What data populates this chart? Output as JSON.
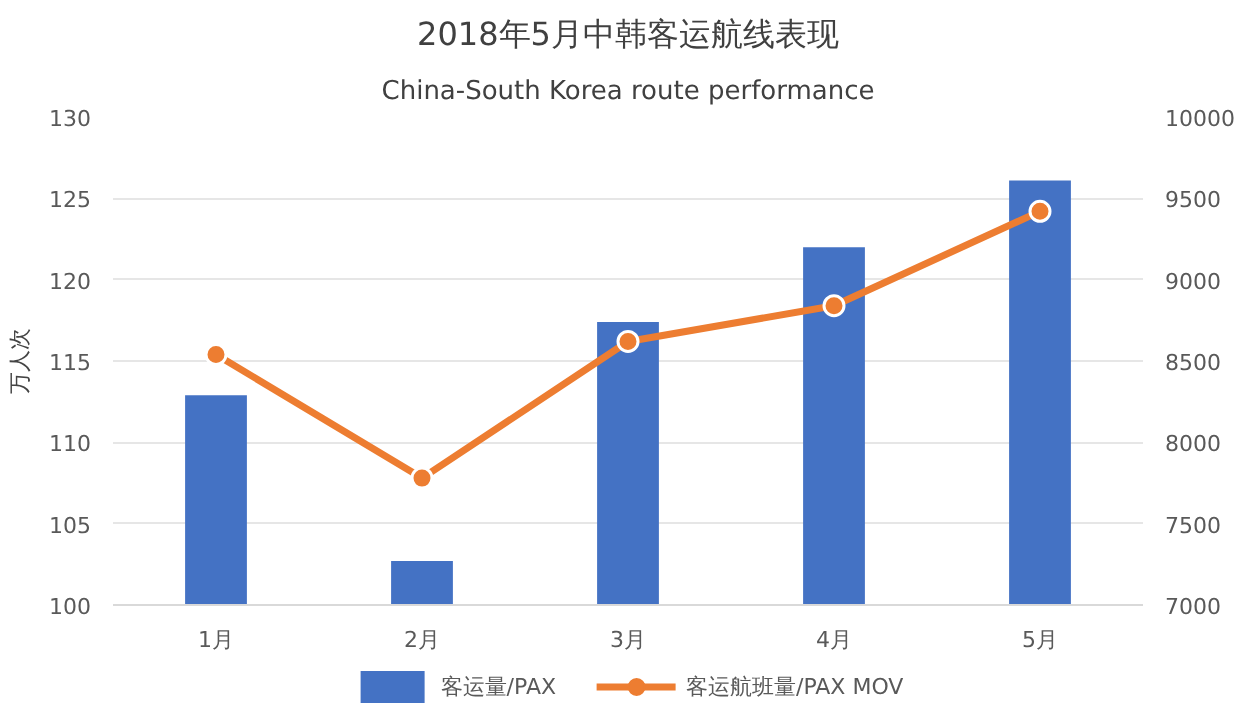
{
  "chart_data": {
    "type": "bar",
    "title": "2018年5月中韩客运航线表现",
    "subtitle": "China-South Korea route performance",
    "categories": [
      "1月",
      "2月",
      "3月",
      "4月",
      "5月"
    ],
    "ylabel": "万人次",
    "series": [
      {
        "name": "客运量/PAX",
        "color": "#4472c4",
        "values": [
          112.9,
          102.7,
          117.4,
          122.0,
          126.1
        ]
      },
      {
        "name": "客运航班量/PAX MOV",
        "type": "line",
        "axis": "y2",
        "color": "#ed7d31",
        "values": [
          8540,
          7780,
          8620,
          8840,
          9420
        ]
      }
    ],
    "ylim": [
      100,
      130
    ],
    "yticks": [
      100,
      105,
      110,
      115,
      120,
      125,
      130
    ],
    "y2lim": [
      7000,
      10000
    ],
    "y2ticks": [
      7000,
      7500,
      8000,
      8500,
      9000,
      9500,
      10000
    ],
    "grid": "y",
    "legend": "bottom",
    "marker": "circle",
    "line_style": "solid"
  }
}
